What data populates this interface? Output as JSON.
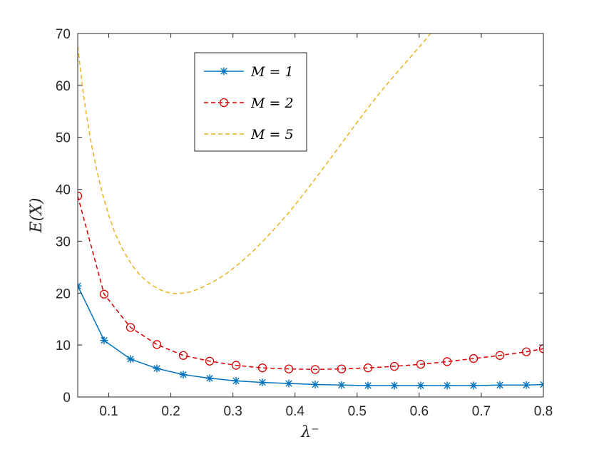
{
  "chart_data": {
    "type": "line",
    "xlabel": "λ⁻",
    "ylabel": "E(X)",
    "xlim": [
      0.05,
      0.8
    ],
    "ylim": [
      0,
      70
    ],
    "xticks": [
      "0.1",
      "0.2",
      "0.3",
      "0.4",
      "0.5",
      "0.6",
      "0.7",
      "0.8"
    ],
    "yticks": [
      "0",
      "10",
      "20",
      "30",
      "40",
      "50",
      "60",
      "70"
    ],
    "grid": false,
    "legend_position": "top-center",
    "series": [
      {
        "name": "M = 1",
        "color": "#0072BD",
        "line_style": "solid",
        "marker": "asterisk",
        "x": [
          0.05,
          0.0925,
          0.135,
          0.1775,
          0.22,
          0.2625,
          0.305,
          0.3475,
          0.39,
          0.4325,
          0.475,
          0.5175,
          0.56,
          0.6025,
          0.645,
          0.6875,
          0.73,
          0.7725,
          0.8
        ],
        "y": [
          21.4,
          10.9,
          7.3,
          5.5,
          4.3,
          3.6,
          3.1,
          2.8,
          2.6,
          2.4,
          2.3,
          2.2,
          2.2,
          2.2,
          2.2,
          2.2,
          2.3,
          2.3,
          2.4
        ]
      },
      {
        "name": "M = 2",
        "color": "#D90000",
        "line_style": "dashed",
        "marker": "circle",
        "x": [
          0.05,
          0.0925,
          0.135,
          0.1775,
          0.22,
          0.2625,
          0.305,
          0.3475,
          0.39,
          0.4325,
          0.475,
          0.5175,
          0.56,
          0.6025,
          0.645,
          0.6875,
          0.73,
          0.7725,
          0.8
        ],
        "y": [
          38.7,
          19.8,
          13.4,
          10.1,
          8.0,
          6.9,
          6.1,
          5.6,
          5.4,
          5.3,
          5.4,
          5.6,
          5.9,
          6.3,
          6.8,
          7.4,
          8.0,
          8.7,
          9.3
        ]
      },
      {
        "name": "M = 5",
        "color": "#EDB120",
        "line_style": "dashed",
        "marker": "none",
        "x": [
          0.05,
          0.06,
          0.07,
          0.08,
          0.09,
          0.1,
          0.11,
          0.12,
          0.13,
          0.14,
          0.15,
          0.16,
          0.17,
          0.18,
          0.19,
          0.2,
          0.21,
          0.22,
          0.23,
          0.24,
          0.25,
          0.27,
          0.29,
          0.31,
          0.33,
          0.35,
          0.37,
          0.39,
          0.41,
          0.43,
          0.45,
          0.47,
          0.49,
          0.51,
          0.53,
          0.55,
          0.57,
          0.59,
          0.61,
          0.625
        ],
        "y": [
          67.5,
          57.5,
          50.0,
          44.0,
          39.0,
          35.0,
          31.5,
          29.0,
          26.8,
          25.0,
          23.5,
          22.4,
          21.5,
          20.8,
          20.3,
          20.0,
          19.9,
          20.0,
          20.2,
          20.6,
          21.1,
          22.3,
          23.8,
          25.7,
          27.8,
          30.2,
          32.8,
          35.5,
          38.5,
          41.6,
          44.8,
          48.0,
          51.3,
          54.5,
          57.6,
          60.5,
          63.3,
          66.0,
          68.8,
          71.0
        ]
      }
    ]
  }
}
